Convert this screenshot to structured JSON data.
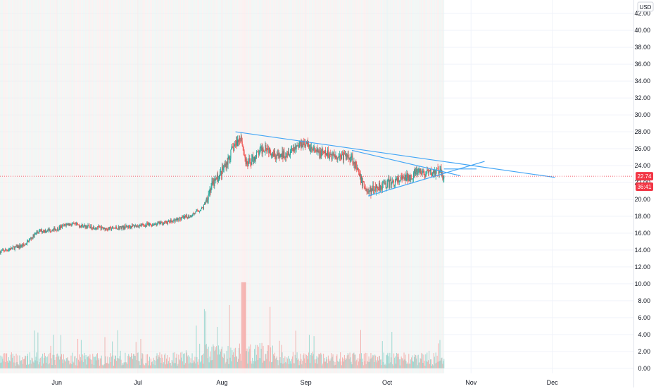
{
  "chart_data": {
    "type": "candlestick",
    "currency": "USD",
    "y_ticks": [
      "0.00",
      "2.00",
      "4.00",
      "6.00",
      "8.00",
      "10.00",
      "12.00",
      "14.00",
      "16.00",
      "18.00",
      "20.00",
      "22.00",
      "24.00",
      "26.00",
      "28.00",
      "30.00",
      "32.00",
      "34.00",
      "36.00",
      "38.00",
      "40.00",
      "42.00"
    ],
    "ylim": [
      -0.6,
      43.6
    ],
    "x_labels": [
      {
        "label": "Jun",
        "date": "2021-06-01"
      },
      {
        "label": "Jul",
        "date": "2021-07-01"
      },
      {
        "label": "Aug",
        "date": "2021-08-01"
      },
      {
        "label": "Sep",
        "date": "2021-09-01"
      },
      {
        "label": "Oct",
        "date": "2021-10-01"
      },
      {
        "label": "Nov",
        "date": "2021-11-01"
      },
      {
        "label": "Dec",
        "date": "2021-12-01"
      }
    ],
    "xlim": [
      "2021-05-11",
      "2021-12-31"
    ],
    "last_price": "22.74",
    "countdown": "36:41",
    "price_series": [
      {
        "date": "2021-05-11",
        "value": 13.8
      },
      {
        "date": "2021-05-20",
        "value": 14.6
      },
      {
        "date": "2021-05-25",
        "value": 16.2
      },
      {
        "date": "2021-06-01",
        "value": 16.5
      },
      {
        "date": "2021-06-05",
        "value": 17.1
      },
      {
        "date": "2021-06-12",
        "value": 16.8
      },
      {
        "date": "2021-06-20",
        "value": 16.5
      },
      {
        "date": "2021-06-28",
        "value": 16.8
      },
      {
        "date": "2021-07-05",
        "value": 17.0
      },
      {
        "date": "2021-07-12",
        "value": 17.3
      },
      {
        "date": "2021-07-20",
        "value": 18.0
      },
      {
        "date": "2021-07-25",
        "value": 19.0
      },
      {
        "date": "2021-07-28",
        "value": 21.5
      },
      {
        "date": "2021-07-31",
        "value": 22.8
      },
      {
        "date": "2021-08-03",
        "value": 24.5
      },
      {
        "date": "2021-08-05",
        "value": 26.0
      },
      {
        "date": "2021-08-08",
        "value": 27.5
      },
      {
        "date": "2021-08-10",
        "value": 24.0
      },
      {
        "date": "2021-08-13",
        "value": 25.0
      },
      {
        "date": "2021-08-17",
        "value": 26.3
      },
      {
        "date": "2021-08-22",
        "value": 25.0
      },
      {
        "date": "2021-08-27",
        "value": 26.0
      },
      {
        "date": "2021-08-31",
        "value": 26.8
      },
      {
        "date": "2021-09-05",
        "value": 25.5
      },
      {
        "date": "2021-09-12",
        "value": 25.2
      },
      {
        "date": "2021-09-18",
        "value": 25.0
      },
      {
        "date": "2021-09-21",
        "value": 22.5
      },
      {
        "date": "2021-09-24",
        "value": 20.8
      },
      {
        "date": "2021-09-28",
        "value": 21.6
      },
      {
        "date": "2021-10-03",
        "value": 22.0
      },
      {
        "date": "2021-10-08",
        "value": 22.5
      },
      {
        "date": "2021-10-12",
        "value": 23.2
      },
      {
        "date": "2021-10-16",
        "value": 23.0
      },
      {
        "date": "2021-10-20",
        "value": 23.3
      },
      {
        "date": "2021-10-22",
        "value": 22.74
      }
    ],
    "trendlines": [
      {
        "start": {
          "date": "2021-08-06",
          "value": 28.0
        },
        "end": {
          "date": "2021-12-02",
          "value": 22.6
        }
      },
      {
        "start": {
          "date": "2021-09-18",
          "value": 25.8
        },
        "end": {
          "date": "2021-10-28",
          "value": 22.8
        }
      },
      {
        "start": {
          "date": "2021-09-24",
          "value": 20.4
        },
        "end": {
          "date": "2021-11-06",
          "value": 24.5
        }
      },
      {
        "start": {
          "date": "2021-10-22",
          "value": 23.6
        },
        "end": {
          "date": "2021-11-03",
          "value": 23.6
        }
      }
    ],
    "volume_bars_range": [
      "2021-05-11",
      "2021-10-22"
    ],
    "grid": true
  },
  "colors": {
    "up": "#26a69a",
    "down": "#ef5350",
    "trendline": "#42a5f5",
    "grid": "#f0f3fa",
    "price_label_bg": "#f23645",
    "price_line": "#f23645",
    "text": "#131722",
    "axis_border": "#e0e3eb"
  }
}
